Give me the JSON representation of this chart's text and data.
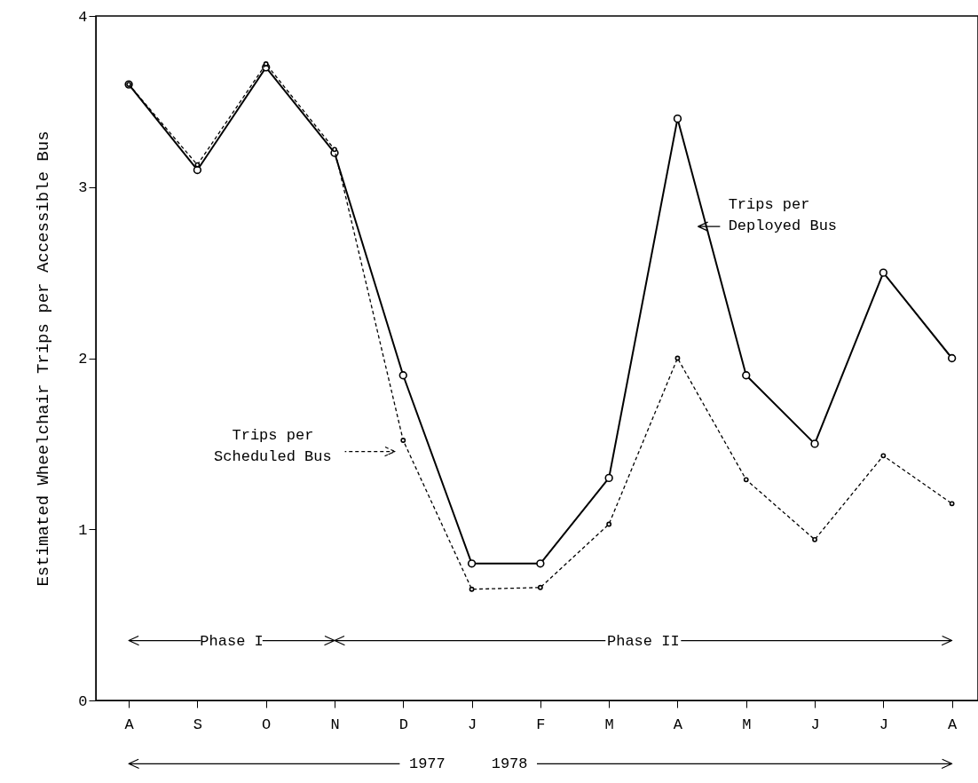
{
  "chart_data": {
    "type": "line",
    "ylabel": "Estimated Wheelchair Trips per Accessible Bus",
    "categories": [
      "A",
      "S",
      "O",
      "N",
      "D",
      "J",
      "F",
      "M",
      "A",
      "M",
      "J",
      "J",
      "A"
    ],
    "series": [
      {
        "name": "Trips per Deployed Bus",
        "color": "#000000",
        "line_style": "solid",
        "values": [
          3.6,
          3.1,
          3.7,
          3.2,
          1.9,
          0.8,
          0.8,
          1.3,
          3.4,
          1.9,
          1.5,
          2.5,
          2.0
        ]
      },
      {
        "name": "Trips per Scheduled Bus",
        "color": "#000000",
        "line_style": "dashed",
        "values": [
          3.6,
          3.13,
          3.72,
          3.22,
          1.52,
          0.65,
          0.66,
          1.03,
          2.0,
          1.29,
          0.94,
          1.43,
          1.15
        ]
      }
    ],
    "ylim": [
      0,
      4
    ],
    "yticks": [
      0,
      1,
      2,
      3,
      4
    ],
    "grid": false,
    "marker": "circle",
    "annotations": [
      "Phase I",
      "Phase II",
      "1977",
      "1978"
    ]
  }
}
